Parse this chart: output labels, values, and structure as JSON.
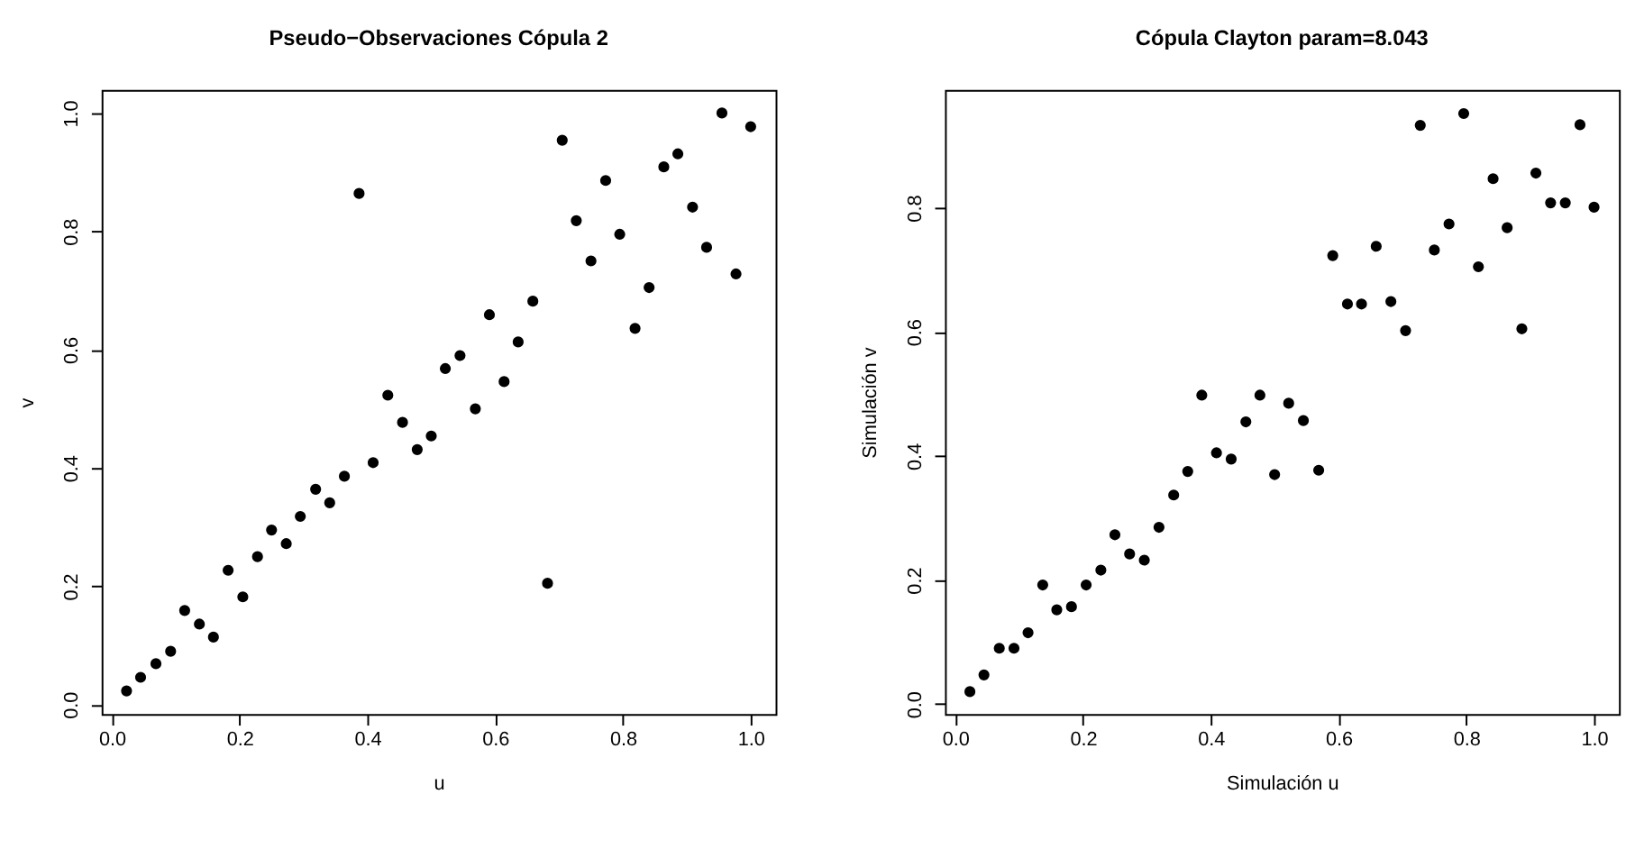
{
  "chart_data": [
    {
      "type": "scatter",
      "title": "Pseudo−Observaciones Cópula 2",
      "xlabel": "u",
      "ylabel": "v",
      "marker": "circle",
      "grid": false,
      "xlim": [
        -0.016,
        1.039
      ],
      "ylim": [
        -0.016,
        1.039
      ],
      "xticks": [
        {
          "value": 0,
          "label": "0.0"
        },
        {
          "value": 0.2,
          "label": "0.2"
        },
        {
          "value": 0.4,
          "label": "0.4"
        },
        {
          "value": 0.6,
          "label": "0.6"
        },
        {
          "value": 0.8,
          "label": "0.8"
        },
        {
          "value": 1,
          "label": "1.0"
        }
      ],
      "yticks": [
        {
          "value": 0,
          "label": "0.0"
        },
        {
          "value": 0.2,
          "label": "0.2"
        },
        {
          "value": 0.4,
          "label": "0.4"
        },
        {
          "value": 0.6,
          "label": "0.6"
        },
        {
          "value": 0.8,
          "label": "0.8"
        },
        {
          "value": 1,
          "label": "1.0"
        }
      ],
      "series": [
        {
          "color": "#000000",
          "x": [
            0.023,
            0.045,
            0.069,
            0.092,
            0.114,
            0.137,
            0.159,
            0.182,
            0.205,
            0.228,
            0.25,
            0.273,
            0.295,
            0.319,
            0.341,
            0.364,
            0.387,
            0.409,
            0.432,
            0.455,
            0.478,
            0.5,
            0.522,
            0.545,
            0.569,
            0.591,
            0.614,
            0.636,
            0.659,
            0.682,
            0.705,
            0.727,
            0.75,
            0.773,
            0.795,
            0.819,
            0.841,
            0.864,
            0.886,
            0.909,
            0.931,
            0.955,
            0.977,
            1.0
          ],
          "values": [
            0.023,
            0.046,
            0.069,
            0.09,
            0.159,
            0.136,
            0.114,
            0.227,
            0.182,
            0.25,
            0.295,
            0.272,
            0.318,
            0.364,
            0.341,
            0.386,
            0.864,
            0.409,
            0.523,
            0.477,
            0.431,
            0.454,
            0.568,
            0.59,
            0.5,
            0.659,
            0.546,
            0.613,
            0.682,
            0.205,
            0.954,
            0.818,
            0.75,
            0.886,
            0.795,
            0.636,
            0.705,
            0.909,
            0.931,
            0.841,
            0.773,
            1.0,
            0.728,
            0.977
          ]
        }
      ]
    },
    {
      "type": "scatter",
      "title": "Cópula Clayton param=8.043",
      "xlabel": "Simulación u",
      "ylabel": "Simulación v",
      "marker": "circle",
      "grid": false,
      "xlim": [
        -0.016,
        1.039
      ],
      "ylim": [
        -0.016,
        0.99
      ],
      "xticks": [
        {
          "value": 0,
          "label": "0.0"
        },
        {
          "value": 0.2,
          "label": "0.2"
        },
        {
          "value": 0.4,
          "label": "0.4"
        },
        {
          "value": 0.6,
          "label": "0.6"
        },
        {
          "value": 0.8,
          "label": "0.8"
        },
        {
          "value": 1,
          "label": "1.0"
        }
      ],
      "yticks": [
        {
          "value": 0,
          "label": "0.0"
        },
        {
          "value": 0.2,
          "label": "0.2"
        },
        {
          "value": 0.4,
          "label": "0.4"
        },
        {
          "value": 0.6,
          "label": "0.6"
        },
        {
          "value": 0.8,
          "label": "0.8"
        }
      ],
      "series": [
        {
          "color": "#000000",
          "x": [
            0.023,
            0.045,
            0.069,
            0.092,
            0.114,
            0.137,
            0.159,
            0.182,
            0.205,
            0.228,
            0.25,
            0.273,
            0.296,
            0.319,
            0.342,
            0.364,
            0.386,
            0.409,
            0.432,
            0.455,
            0.477,
            0.5,
            0.522,
            0.545,
            0.569,
            0.591,
            0.614,
            0.636,
            0.659,
            0.682,
            0.705,
            0.728,
            0.75,
            0.773,
            0.796,
            0.819,
            0.842,
            0.864,
            0.887,
            0.909,
            0.932,
            0.955,
            0.978,
            1.0
          ],
          "values": [
            0.02,
            0.047,
            0.09,
            0.09,
            0.115,
            0.192,
            0.152,
            0.157,
            0.192,
            0.216,
            0.273,
            0.242,
            0.232,
            0.285,
            0.337,
            0.375,
            0.498,
            0.405,
            0.395,
            0.455,
            0.498,
            0.37,
            0.485,
            0.457,
            0.377,
            0.723,
            0.645,
            0.645,
            0.738,
            0.649,
            0.602,
            0.933,
            0.732,
            0.774,
            0.952,
            0.705,
            0.847,
            0.768,
            0.605,
            0.856,
            0.808,
            0.808,
            0.934,
            0.801
          ]
        }
      ]
    }
  ]
}
